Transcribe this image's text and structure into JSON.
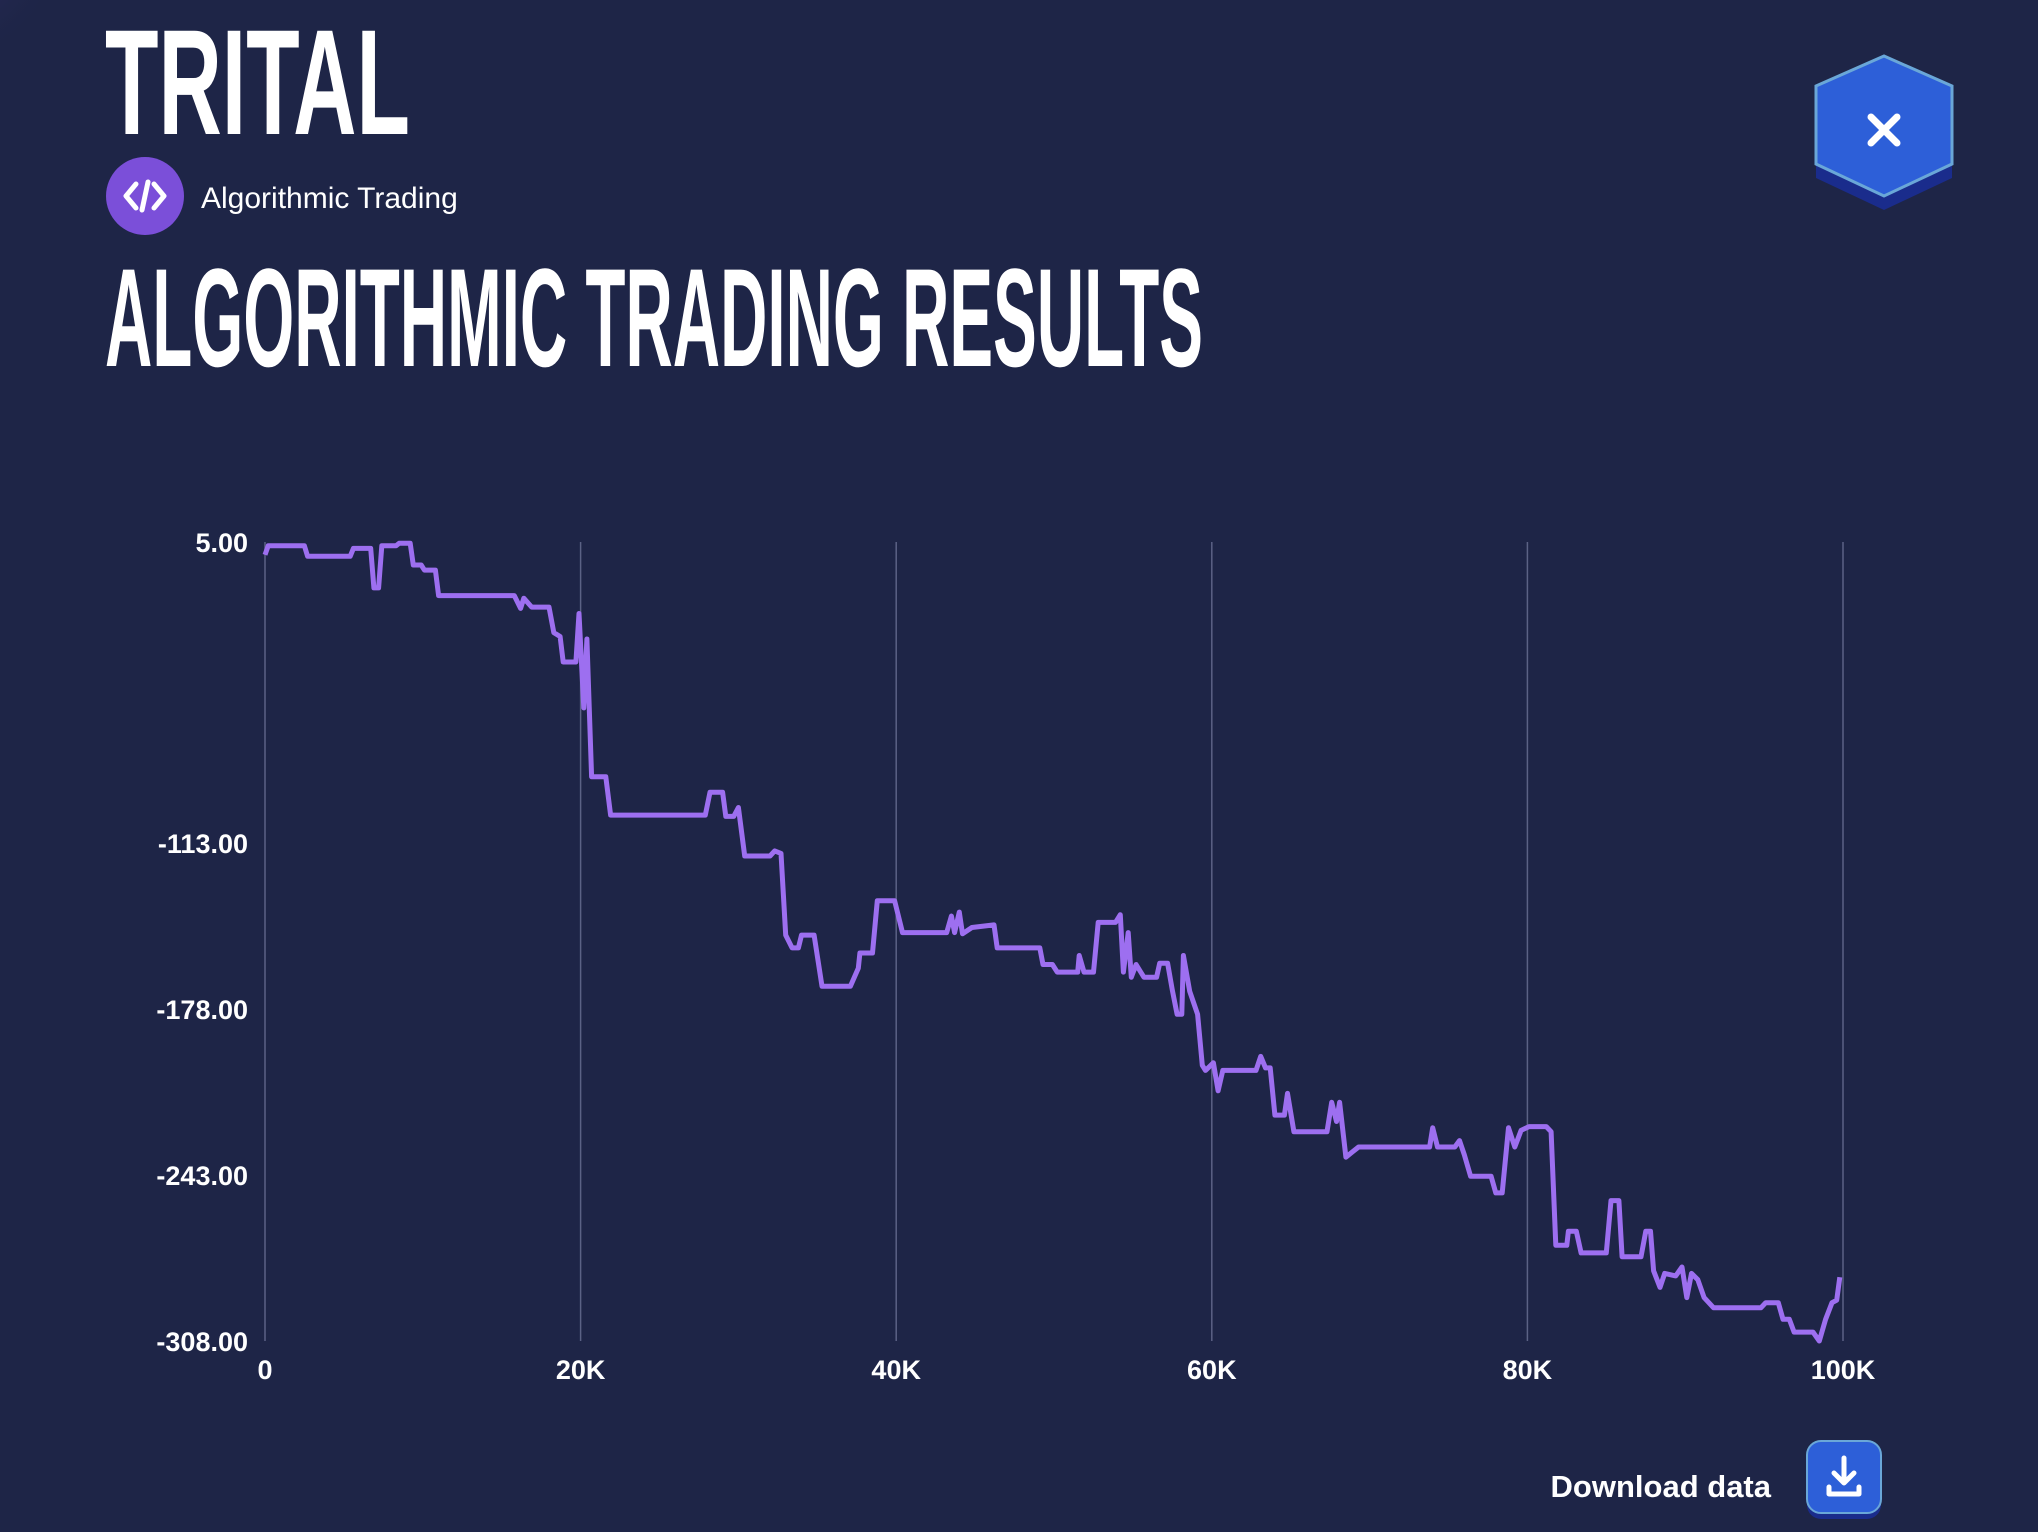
{
  "header": {
    "overline": "TRITAL",
    "tag": "Algorithmic Trading"
  },
  "actions": {
    "download": "Download data"
  },
  "chart_data": {
    "type": "line",
    "title": "ALGORITHMIC TRADING RESULTS",
    "color": "#9d6ff0",
    "grid": "x",
    "xlim": [
      0,
      100000
    ],
    "xticks": [
      0,
      {
        "value": 20000,
        "label": "20K"
      },
      {
        "value": 40000,
        "label": "40K"
      },
      {
        "value": 60000,
        "label": "60K"
      },
      {
        "value": 80000,
        "label": "80K"
      },
      {
        "value": 100000,
        "label": "100K"
      }
    ],
    "ylim": [
      -308,
      5
    ],
    "yticks": [
      {
        "value": 5,
        "label": "5.00"
      },
      {
        "value": -113,
        "label": "-113.00"
      },
      {
        "value": -178,
        "label": "-178.00"
      },
      {
        "value": -243,
        "label": "-243.00"
      },
      {
        "value": -308,
        "label": "-308.00"
      }
    ],
    "x": [
      0,
      200,
      2500,
      2700,
      5400,
      5600,
      6700,
      6900,
      7200,
      7400,
      8300,
      8500,
      9200,
      9400,
      9900,
      10100,
      10800,
      11000,
      15800,
      16200,
      16400,
      16900,
      18000,
      18300,
      18700,
      18900,
      19700,
      19900,
      20200,
      20400,
      20700,
      21600,
      21900,
      27900,
      28200,
      29000,
      29200,
      29700,
      30000,
      30400,
      32000,
      32300,
      32700,
      33000,
      33400,
      33800,
      34000,
      34800,
      35300,
      37100,
      37600,
      37700,
      38500,
      38800,
      39900,
      40400,
      43200,
      43500,
      43700,
      44000,
      44200,
      44800,
      46200,
      46400,
      49100,
      49300,
      49900,
      50200,
      51500,
      51600,
      51900,
      52500,
      52800,
      53900,
      54200,
      54400,
      54700,
      54900,
      55200,
      55700,
      56500,
      56700,
      57200,
      57500,
      57800,
      58100,
      58200,
      58600,
      59100,
      59400,
      59600,
      60100,
      60400,
      60700,
      62800,
      63100,
      63400,
      63700,
      64000,
      64600,
      64800,
      65200,
      67300,
      67600,
      67900,
      68100,
      68500,
      68900,
      69300,
      73800,
      74000,
      74300,
      75400,
      75700,
      76000,
      76400,
      77700,
      78000,
      78400,
      78800,
      79200,
      79600,
      80100,
      81200,
      81500,
      81800,
      82500,
      82600,
      83100,
      83400,
      85000,
      85300,
      85800,
      86000,
      87200,
      87500,
      87800,
      88000,
      88400,
      88700,
      89400,
      89800,
      90100,
      90400,
      90800,
      91200,
      91800,
      94800,
      95100,
      95900,
      96200,
      96600,
      96900,
      98100,
      98500,
      98900,
      99300,
      99600,
      99800
    ],
    "values": [
      0,
      3.5,
      3.5,
      -0.6,
      -0.6,
      2.5,
      2.5,
      -13,
      -13,
      3.5,
      3.5,
      4.5,
      4.5,
      -4,
      -4,
      -6,
      -6,
      -16,
      -16,
      -21,
      -17,
      -20.5,
      -20.5,
      -30.5,
      -32,
      -42,
      -42,
      -23,
      -60,
      -33,
      -87,
      -87,
      -102,
      -102,
      -93,
      -93,
      -102.5,
      -102.5,
      -99,
      -118,
      -118,
      -116,
      -117,
      -149,
      -154,
      -154,
      -149,
      -149,
      -169,
      -169,
      -162,
      -156,
      -156,
      -135.5,
      -135.5,
      -148,
      -148,
      -141.5,
      -148,
      -140,
      -148.5,
      -146,
      -145,
      -154,
      -154,
      -160.5,
      -160.5,
      -163.5,
      -163.5,
      -157,
      -163.5,
      -163.5,
      -144,
      -144,
      -141,
      -163.5,
      -148,
      -165.5,
      -160.5,
      -165.5,
      -165.5,
      -160,
      -160,
      -170.5,
      -180,
      -180,
      -157,
      -171,
      -180,
      -200,
      -202,
      -199,
      -210,
      -202,
      -202,
      -196.5,
      -201,
      -201,
      -219.5,
      -219.5,
      -211,
      -226,
      -226,
      -214.5,
      -222,
      -214.5,
      -236,
      -234,
      -232,
      -232,
      -224.5,
      -232,
      -232,
      -229.5,
      -235,
      -243.5,
      -243.5,
      -250,
      -250,
      -224.5,
      -232,
      -225.5,
      -224,
      -224,
      -226,
      -270.5,
      -270.5,
      -265,
      -265,
      -273.5,
      -273.5,
      -253,
      -253,
      -275,
      -275,
      -265,
      -265,
      -280.5,
      -287,
      -281.5,
      -282.5,
      -279,
      -291,
      -281.5,
      -284,
      -291,
      -295,
      -295,
      -293,
      -293,
      -299.5,
      -299.5,
      -304.5,
      -304.5,
      -308,
      -299.5,
      -293,
      -292,
      -283
    ]
  }
}
